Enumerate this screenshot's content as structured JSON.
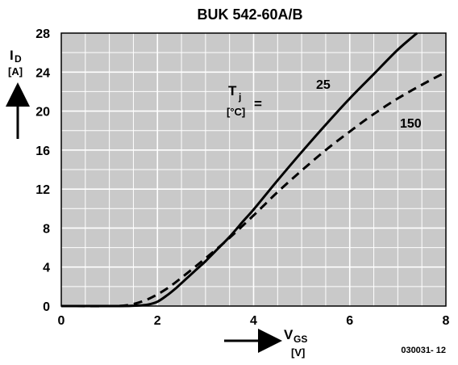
{
  "chart_data": {
    "type": "line",
    "title": "BUK 542-60A/B",
    "xlabel": {
      "main": "V",
      "sub": "GS",
      "unit": "[V]"
    },
    "ylabel": {
      "main": "I",
      "sub": "D",
      "unit": "[A]"
    },
    "xlim": [
      0,
      8
    ],
    "ylim": [
      0,
      28
    ],
    "x_ticks": [
      "0",
      "2",
      "4",
      "6",
      "8"
    ],
    "y_ticks": [
      "0",
      "4",
      "8",
      "12",
      "16",
      "20",
      "24",
      "28"
    ],
    "grid": true,
    "legend_title": {
      "main": "T",
      "sub": "j",
      "unit": "[°C]",
      "eq": "="
    },
    "series": [
      {
        "name": "25",
        "style": "solid",
        "x": [
          0,
          1.2,
          1.6,
          1.8,
          2.0,
          2.2,
          2.4,
          2.6,
          2.8,
          3.0,
          3.2,
          3.5,
          3.8,
          4.0,
          4.5,
          5.0,
          5.5,
          6.0,
          6.5,
          7.0,
          7.4
        ],
        "y": [
          0,
          0,
          0.05,
          0.15,
          0.45,
          1.1,
          1.9,
          2.8,
          3.7,
          4.6,
          5.6,
          7.1,
          8.8,
          9.9,
          12.9,
          15.8,
          18.6,
          21.3,
          23.8,
          26.3,
          28.0
        ]
      },
      {
        "name": "150",
        "style": "dashed",
        "x": [
          0,
          1.0,
          1.4,
          1.8,
          2.2,
          2.6,
          3.0,
          3.5,
          4.0,
          4.5,
          5.0,
          5.5,
          6.0,
          6.5,
          7.0,
          7.5,
          8.0
        ],
        "y": [
          0,
          0,
          0.1,
          0.7,
          1.8,
          3.3,
          4.9,
          7.0,
          9.3,
          11.7,
          13.9,
          16.0,
          17.9,
          19.7,
          21.3,
          22.7,
          24.0
        ]
      }
    ]
  },
  "footer_code": "030031- 12"
}
